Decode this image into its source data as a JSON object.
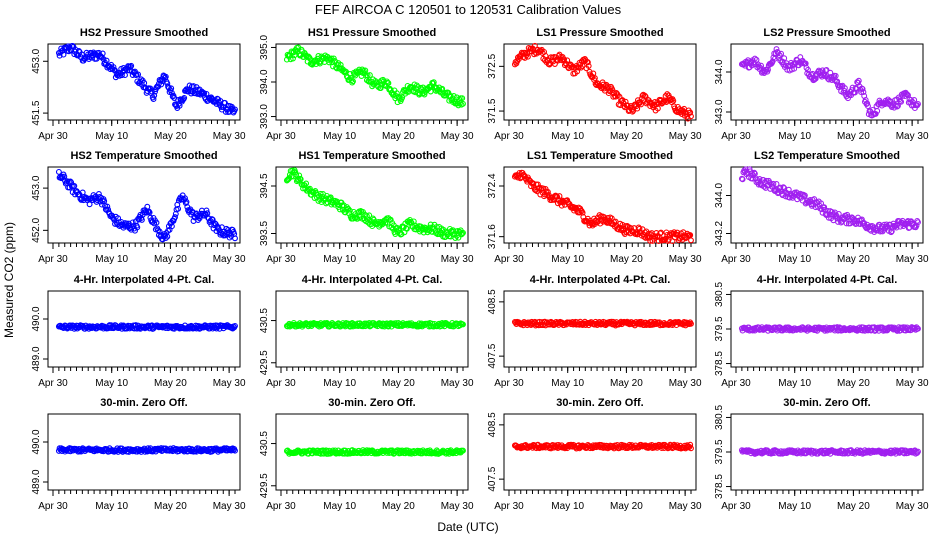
{
  "figure": {
    "title": "FEF   AIRCOA C   120501 to 120531   Calibration Values",
    "ylabel": "Measured CO2 (ppm)",
    "xlabel": "Date (UTC)"
  },
  "colors": {
    "blue": "#0000ff",
    "green": "#00ff00",
    "red": "#ff0000",
    "purple": "#a020f0"
  },
  "chart_data": [
    {
      "type": "scatter",
      "title": "HS2 Pressure Smoothed",
      "color": "blue",
      "xlim": [
        0,
        31
      ],
      "ylim": [
        451.3,
        453.5
      ],
      "yticks": [
        "451.5",
        "453.0"
      ],
      "ytick_vals": [
        451.5,
        453.0
      ],
      "xticks": [
        "Apr 30",
        "May 10",
        "May 20",
        "May 30"
      ],
      "xtick_vals": [
        0,
        10,
        20,
        30
      ],
      "series": [
        {
          "x": [
            1,
            3,
            5,
            8,
            11,
            13,
            15,
            17,
            19,
            21,
            23,
            25,
            27,
            30,
            31
          ],
          "y": [
            453.2,
            453.4,
            453.1,
            453.2,
            452.6,
            452.8,
            452.4,
            452.0,
            452.6,
            451.7,
            452.2,
            452.1,
            451.9,
            451.6,
            451.5
          ]
        }
      ]
    },
    {
      "type": "scatter",
      "title": "HS1 Pressure Smoothed",
      "color": "green",
      "xlim": [
        0,
        31
      ],
      "ylim": [
        392.9,
        395.1
      ],
      "yticks": [
        "393.0",
        "394.0",
        "395.0"
      ],
      "ytick_vals": [
        393.0,
        394.0,
        395.0
      ],
      "xticks": [
        "Apr 30",
        "May 10",
        "May 20",
        "May 30"
      ],
      "xtick_vals": [
        0,
        10,
        20,
        30
      ],
      "series": [
        {
          "x": [
            1,
            3,
            5,
            8,
            10,
            12,
            14,
            16,
            18,
            20,
            22,
            24,
            26,
            28,
            31
          ],
          "y": [
            394.7,
            394.9,
            394.6,
            394.7,
            394.4,
            394.1,
            394.3,
            393.9,
            394.0,
            393.5,
            393.9,
            393.7,
            393.9,
            393.6,
            393.4
          ]
        }
      ]
    },
    {
      "type": "scatter",
      "title": "LS1 Pressure Smoothed",
      "color": "red",
      "xlim": [
        0,
        31
      ],
      "ylim": [
        371.3,
        373.0
      ],
      "yticks": [
        "371.5",
        "372.5"
      ],
      "ytick_vals": [
        371.5,
        372.5
      ],
      "xticks": [
        "Apr 30",
        "May 10",
        "May 20",
        "May 30"
      ],
      "xtick_vals": [
        0,
        10,
        20,
        30
      ],
      "series": [
        {
          "x": [
            1,
            3,
            5,
            7,
            9,
            11,
            13,
            15,
            17,
            19,
            21,
            23,
            25,
            27,
            29,
            31
          ],
          "y": [
            372.6,
            372.8,
            372.9,
            372.6,
            372.7,
            372.4,
            372.6,
            372.1,
            372.0,
            371.7,
            371.5,
            371.8,
            371.6,
            371.8,
            371.5,
            371.4
          ]
        }
      ]
    },
    {
      "type": "scatter",
      "title": "LS2 Pressure Smoothed",
      "color": "purple",
      "xlim": [
        0,
        31
      ],
      "ylim": [
        342.8,
        344.7
      ],
      "yticks": [
        "343.0",
        "344.0"
      ],
      "ytick_vals": [
        343.0,
        344.0
      ],
      "xticks": [
        "Apr 30",
        "May 10",
        "May 20",
        "May 30"
      ],
      "xtick_vals": [
        0,
        10,
        20,
        30
      ],
      "series": [
        {
          "x": [
            1,
            3,
            5,
            7,
            9,
            11,
            13,
            15,
            17,
            19,
            21,
            23,
            25,
            27,
            29,
            31
          ],
          "y": [
            344.1,
            344.3,
            344.0,
            344.5,
            344.1,
            344.3,
            343.9,
            344.0,
            343.8,
            343.4,
            343.7,
            342.9,
            343.3,
            343.2,
            343.4,
            343.1
          ]
        }
      ]
    },
    {
      "type": "scatter",
      "title": "HS2 Temperature Smoothed",
      "color": "blue",
      "xlim": [
        0,
        31
      ],
      "ylim": [
        451.7,
        453.5
      ],
      "yticks": [
        "452.0",
        "453.0"
      ],
      "ytick_vals": [
        452.0,
        453.0
      ],
      "xticks": [
        "Apr 30",
        "May 10",
        "May 20",
        "May 30"
      ],
      "xtick_vals": [
        0,
        10,
        20,
        30
      ],
      "series": [
        {
          "x": [
            1,
            2,
            4,
            6,
            8,
            10,
            12,
            14,
            16,
            18,
            19,
            20,
            22,
            24,
            26,
            28,
            31
          ],
          "y": [
            453.3,
            453.2,
            452.9,
            452.7,
            452.8,
            452.3,
            452.1,
            452.1,
            452.5,
            452.0,
            451.8,
            452.1,
            452.8,
            452.3,
            452.4,
            452.0,
            451.9
          ]
        }
      ]
    },
    {
      "type": "scatter",
      "title": "HS1 Temperature Smoothed",
      "color": "green",
      "xlim": [
        0,
        31
      ],
      "ylim": [
        393.3,
        394.9
      ],
      "yticks": [
        "393.5",
        "394.5"
      ],
      "ytick_vals": [
        393.5,
        394.5
      ],
      "xticks": [
        "Apr 30",
        "May 10",
        "May 20",
        "May 30"
      ],
      "xtick_vals": [
        0,
        10,
        20,
        30
      ],
      "series": [
        {
          "x": [
            1,
            2,
            4,
            6,
            8,
            10,
            12,
            14,
            16,
            18,
            20,
            22,
            24,
            26,
            28,
            31
          ],
          "y": [
            394.7,
            394.8,
            394.5,
            394.3,
            394.2,
            394.1,
            393.9,
            393.9,
            393.7,
            393.8,
            393.5,
            393.7,
            393.6,
            393.6,
            393.5,
            393.5
          ]
        }
      ]
    },
    {
      "type": "scatter",
      "title": "LS1 Temperature Smoothed",
      "color": "red",
      "xlim": [
        0,
        31
      ],
      "ylim": [
        371.5,
        372.7
      ],
      "yticks": [
        "371.6",
        "372.4"
      ],
      "ytick_vals": [
        371.6,
        372.4
      ],
      "xticks": [
        "Apr 30",
        "May 10",
        "May 20",
        "May 30"
      ],
      "xtick_vals": [
        0,
        10,
        20,
        30
      ],
      "series": [
        {
          "x": [
            1,
            2,
            4,
            6,
            8,
            10,
            12,
            14,
            16,
            18,
            20,
            22,
            24,
            26,
            28,
            31
          ],
          "y": [
            372.5,
            372.6,
            372.4,
            372.3,
            372.2,
            372.1,
            372.0,
            371.8,
            371.9,
            371.8,
            371.7,
            371.7,
            371.6,
            371.6,
            371.6,
            371.6
          ]
        }
      ]
    },
    {
      "type": "scatter",
      "title": "LS2 Temperature Smoothed",
      "color": "purple",
      "xlim": [
        0,
        31
      ],
      "ylim": [
        343.0,
        344.6
      ],
      "yticks": [
        "343.2",
        "344.0"
      ],
      "ytick_vals": [
        343.2,
        344.0
      ],
      "xticks": [
        "Apr 30",
        "May 10",
        "May 20",
        "May 30"
      ],
      "xtick_vals": [
        0,
        10,
        20,
        30
      ],
      "series": [
        {
          "x": [
            1,
            2,
            4,
            6,
            8,
            10,
            12,
            14,
            16,
            18,
            20,
            22,
            24,
            26,
            28,
            31
          ],
          "y": [
            344.4,
            344.5,
            344.3,
            344.2,
            344.1,
            344.0,
            343.9,
            343.8,
            343.6,
            343.5,
            343.5,
            343.4,
            343.3,
            343.3,
            343.4,
            343.4
          ]
        }
      ]
    },
    {
      "type": "scatter",
      "title": "4-Hr. Interpolated 4-Pt. Cal.",
      "color": "blue",
      "xlim": [
        0,
        31
      ],
      "ylim": [
        488.8,
        490.7
      ],
      "yticks": [
        "489.0",
        "490.0"
      ],
      "ytick_vals": [
        489.0,
        490.0
      ],
      "xticks": [
        "Apr 30",
        "May 10",
        "May 20",
        "May 30"
      ],
      "xtick_vals": [
        0,
        10,
        20,
        30
      ],
      "series": [
        {
          "x": [
            1,
            31
          ],
          "y": [
            489.8,
            489.8
          ]
        }
      ]
    },
    {
      "type": "scatter",
      "title": "4-Hr. Interpolated 4-Pt. Cal.",
      "color": "green",
      "xlim": [
        0,
        31
      ],
      "ylim": [
        429.4,
        431.2
      ],
      "yticks": [
        "429.5",
        "430.5"
      ],
      "ytick_vals": [
        429.5,
        430.5
      ],
      "xticks": [
        "Apr 30",
        "May 10",
        "May 20",
        "May 30"
      ],
      "xtick_vals": [
        0,
        10,
        20,
        30
      ],
      "series": [
        {
          "x": [
            1,
            31
          ],
          "y": [
            430.4,
            430.4
          ]
        }
      ]
    },
    {
      "type": "scatter",
      "title": "4-Hr. Interpolated 4-Pt. Cal.",
      "color": "red",
      "xlim": [
        0,
        31
      ],
      "ylim": [
        407.3,
        408.7
      ],
      "yticks": [
        "407.5",
        "408.5"
      ],
      "ytick_vals": [
        407.5,
        408.5
      ],
      "xticks": [
        "Apr 30",
        "May 10",
        "May 20",
        "May 30"
      ],
      "xtick_vals": [
        0,
        10,
        20,
        30
      ],
      "series": [
        {
          "x": [
            1,
            31
          ],
          "y": [
            408.1,
            408.1
          ]
        }
      ]
    },
    {
      "type": "scatter",
      "title": "4-Hr. Interpolated 4-Pt. Cal.",
      "color": "purple",
      "xlim": [
        0,
        31
      ],
      "ylim": [
        378.4,
        380.6
      ],
      "yticks": [
        "378.5",
        "379.5",
        "380.5"
      ],
      "ytick_vals": [
        378.5,
        379.5,
        380.5
      ],
      "xticks": [
        "Apr 30",
        "May 10",
        "May 20",
        "May 30"
      ],
      "xtick_vals": [
        0,
        10,
        20,
        30
      ],
      "series": [
        {
          "x": [
            1,
            31
          ],
          "y": [
            379.5,
            379.5
          ]
        }
      ]
    },
    {
      "type": "scatter",
      "title": "30-min. Zero Off.",
      "color": "blue",
      "xlim": [
        0,
        31
      ],
      "ylim": [
        488.8,
        490.7
      ],
      "yticks": [
        "489.0",
        "490.0"
      ],
      "ytick_vals": [
        489.0,
        490.0
      ],
      "xticks": [
        "Apr 30",
        "May 10",
        "May 20",
        "May 30"
      ],
      "xtick_vals": [
        0,
        10,
        20,
        30
      ],
      "series": [
        {
          "x": [
            1,
            31
          ],
          "y": [
            489.8,
            489.8
          ]
        }
      ]
    },
    {
      "type": "scatter",
      "title": "30-min. Zero Off.",
      "color": "green",
      "xlim": [
        0,
        31
      ],
      "ylim": [
        429.4,
        431.2
      ],
      "yticks": [
        "429.5",
        "430.5"
      ],
      "ytick_vals": [
        429.5,
        430.5
      ],
      "xticks": [
        "Apr 30",
        "May 10",
        "May 20",
        "May 30"
      ],
      "xtick_vals": [
        0,
        10,
        20,
        30
      ],
      "series": [
        {
          "x": [
            1,
            31
          ],
          "y": [
            430.3,
            430.3
          ]
        }
      ]
    },
    {
      "type": "scatter",
      "title": "30-min. Zero Off.",
      "color": "red",
      "xlim": [
        0,
        31
      ],
      "ylim": [
        407.3,
        408.7
      ],
      "yticks": [
        "407.5",
        "408.5"
      ],
      "ytick_vals": [
        407.5,
        408.5
      ],
      "xticks": [
        "Apr 30",
        "May 10",
        "May 20",
        "May 30"
      ],
      "xtick_vals": [
        0,
        10,
        20,
        30
      ],
      "series": [
        {
          "x": [
            1,
            31
          ],
          "y": [
            408.1,
            408.1
          ]
        }
      ]
    },
    {
      "type": "scatter",
      "title": "30-min. Zero Off.",
      "color": "purple",
      "xlim": [
        0,
        31
      ],
      "ylim": [
        378.4,
        380.6
      ],
      "yticks": [
        "378.5",
        "379.5",
        "380.5"
      ],
      "ytick_vals": [
        378.5,
        379.5,
        380.5
      ],
      "xticks": [
        "Apr 30",
        "May 10",
        "May 20",
        "May 30"
      ],
      "xtick_vals": [
        0,
        10,
        20,
        30
      ],
      "series": [
        {
          "x": [
            1,
            31
          ],
          "y": [
            379.5,
            379.5
          ]
        }
      ]
    }
  ]
}
